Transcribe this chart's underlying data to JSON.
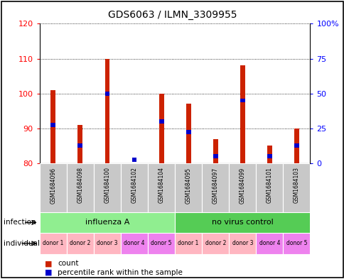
{
  "title": "GDS6063 / ILMN_3309955",
  "samples": [
    "GSM1684096",
    "GSM1684098",
    "GSM1684100",
    "GSM1684102",
    "GSM1684104",
    "GSM1684095",
    "GSM1684097",
    "GSM1684099",
    "GSM1684101",
    "GSM1684103"
  ],
  "red_values": [
    101,
    91,
    110,
    80,
    100,
    97,
    87,
    108,
    85,
    90
  ],
  "blue_values": [
    91,
    85,
    100,
    81,
    92,
    89,
    82,
    98,
    82,
    85
  ],
  "ylim_left": [
    80,
    120
  ],
  "yticks_left": [
    80,
    90,
    100,
    110,
    120
  ],
  "yticks_right": [
    0,
    25,
    50,
    75,
    100
  ],
  "ylim_right": [
    0,
    100
  ],
  "infection_groups": [
    {
      "label": "influenza A",
      "start": 0,
      "end": 5,
      "color": "#90EE90"
    },
    {
      "label": "no virus control",
      "start": 5,
      "end": 10,
      "color": "#55CC55"
    }
  ],
  "individual_labels": [
    "donor 1",
    "donor 2",
    "donor 3",
    "donor 4",
    "donor 5",
    "donor 1",
    "donor 2",
    "donor 3",
    "donor 4",
    "donor 5"
  ],
  "ind_colors": [
    "#FFB6C1",
    "#FFB6C1",
    "#FFB6C1",
    "#EE82EE",
    "#EE82EE",
    "#FFB6C1",
    "#FFB6C1",
    "#FFB6C1",
    "#EE82EE",
    "#EE82EE"
  ],
  "bar_bg_color": "#C8C8C8",
  "red_color": "#CC2200",
  "blue_color": "#0000CC",
  "bar_width": 0.55,
  "red_bar_width": 0.18,
  "blue_bar_height": 1.2,
  "infection_label_color": "#006600"
}
